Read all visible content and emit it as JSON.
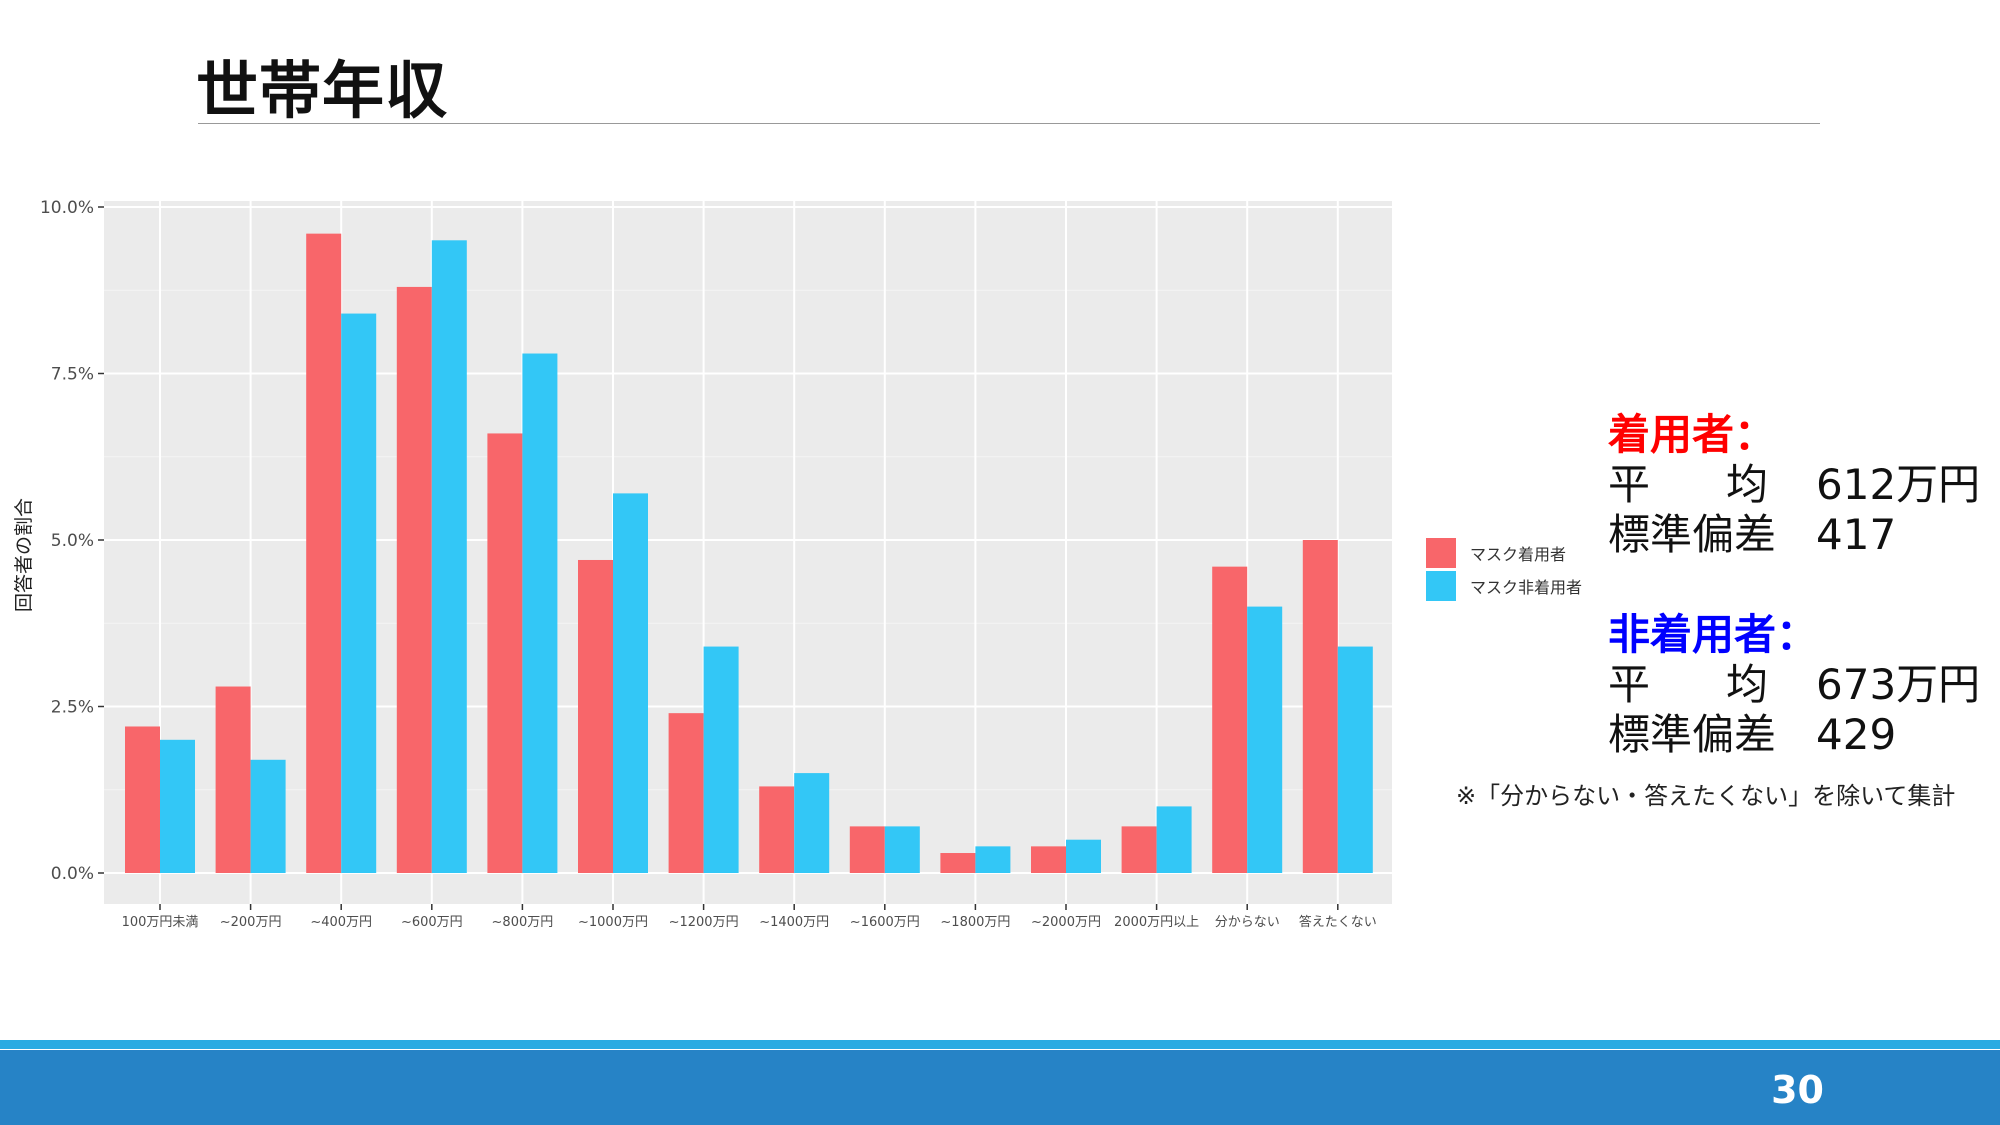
{
  "slide": {
    "title": "世帯年収",
    "page_number": "30"
  },
  "chart_data": {
    "type": "bar",
    "ylabel": "回答者の割合",
    "xlabel": "",
    "ylim": [
      0,
      10
    ],
    "yticks": [
      "0.0%",
      "2.5%",
      "5.0%",
      "7.5%",
      "10.0%"
    ],
    "ytick_values": [
      0,
      2.5,
      5,
      7.5,
      10
    ],
    "categories": [
      "100万円未満",
      "~200万円",
      "~400万円",
      "~600万円",
      "~800万円",
      "~1000万円",
      "~1200万円",
      "~1400万円",
      "~1600万円",
      "~1800万円",
      "~2000万円",
      "2000万円以上",
      "分からない",
      "答えたくない"
    ],
    "series": [
      {
        "name": "マスク着用者",
        "color": "#f8666a",
        "values": [
          2.2,
          2.8,
          9.6,
          8.8,
          6.6,
          4.7,
          2.4,
          1.3,
          0.7,
          0.3,
          0.4,
          0.7,
          4.6,
          5.0
        ]
      },
      {
        "name": "マスク非着用者",
        "color": "#33c7f6",
        "values": [
          2.0,
          1.7,
          8.4,
          9.5,
          7.8,
          5.7,
          3.4,
          1.5,
          0.7,
          0.4,
          0.5,
          1.0,
          4.0,
          3.4
        ]
      }
    ],
    "grid": true,
    "legend_position": "right",
    "panel_background": "#ebebeb"
  },
  "stats": {
    "wearer": {
      "heading": "着用者：",
      "heading_color": "#ff0000",
      "mean_label_1": "平",
      "mean_label_2": "均",
      "mean_value": "612万円",
      "sd_label": "標準偏差",
      "sd_value": "417"
    },
    "non_wearer": {
      "heading": "非着用者：",
      "heading_color": "#0000ff",
      "mean_label_1": "平",
      "mean_label_2": "均",
      "mean_value": "673万円",
      "sd_label": "標準偏差",
      "sd_value": "429"
    },
    "note": "※「分からない・答えたくない」を除いて集計"
  },
  "colors": {
    "footer_bar": "#2683c6",
    "footer_line": "#29abe2"
  }
}
